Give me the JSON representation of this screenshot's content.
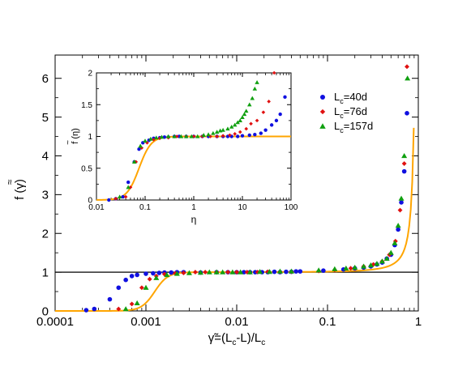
{
  "chart_data": [
    {
      "type": "scatter",
      "panel": "main",
      "title": "",
      "xlabel": "γ̃=(L_c-L)/L_c",
      "ylabel": "f̃ (γ)",
      "xscale": "log",
      "yscale": "linear",
      "xlim": [
        0.0001,
        1
      ],
      "ylim": [
        0,
        6.6
      ],
      "xticks": [
        {
          "value": 0.0001,
          "label": "0.0001"
        },
        {
          "value": 0.001,
          "label": "0.001"
        },
        {
          "value": 0.01,
          "label": "0.01"
        },
        {
          "value": 0.1,
          "label": "0.1"
        },
        {
          "value": 1,
          "label": "1"
        }
      ],
      "yticks": [
        {
          "value": 0,
          "label": "0"
        },
        {
          "value": 1,
          "label": "1"
        },
        {
          "value": 2,
          "label": "2"
        },
        {
          "value": 3,
          "label": "3"
        },
        {
          "value": 4,
          "label": "4"
        },
        {
          "value": 5,
          "label": "5"
        },
        {
          "value": 6,
          "label": "6"
        }
      ],
      "grid": false,
      "reference_line": {
        "y": 1,
        "color": "#000000"
      },
      "series": [
        {
          "name": "L_c=40d",
          "marker": "circle",
          "color": "#1010e0",
          "x": [
            0.00022,
            0.00027,
            0.0004,
            0.0005,
            0.0006,
            0.0007,
            0.0008,
            0.001,
            0.0012,
            0.0014,
            0.0016,
            0.0019,
            0.0022,
            0.0026,
            0.004,
            0.006,
            0.008,
            0.01,
            0.012,
            0.014,
            0.016,
            0.019,
            0.022,
            0.026,
            0.03,
            0.035,
            0.04,
            0.045,
            0.05,
            0.09,
            0.15,
            0.2,
            0.25,
            0.3,
            0.35,
            0.4,
            0.45,
            0.5,
            0.55,
            0.6,
            0.65,
            0.7,
            0.75
          ],
          "y": [
            0.02,
            0.05,
            0.3,
            0.6,
            0.8,
            0.9,
            0.93,
            0.96,
            0.97,
            0.98,
            0.99,
            0.99,
            1.0,
            1.0,
            0.99,
            1.0,
            1.0,
            1.0,
            1.0,
            1.0,
            1.0,
            1.0,
            1.0,
            1.01,
            1.0,
            1.01,
            1.01,
            1.02,
            1.02,
            1.04,
            1.07,
            1.1,
            1.12,
            1.15,
            1.2,
            1.25,
            1.35,
            1.45,
            1.7,
            2.1,
            2.8,
            3.6,
            5.1
          ]
        },
        {
          "name": "L_c=76d",
          "marker": "diamond",
          "color": "#e01010",
          "x": [
            0.0005,
            0.0007,
            0.0009,
            0.0011,
            0.0013,
            0.0016,
            0.0021,
            0.0026,
            0.0035,
            0.0045,
            0.006,
            0.008,
            0.01,
            0.013,
            0.017,
            0.022,
            0.03,
            0.04,
            0.08,
            0.12,
            0.18,
            0.25,
            0.32,
            0.4,
            0.48,
            0.56,
            0.63,
            0.7,
            0.75
          ],
          "y": [
            0.05,
            0.18,
            0.6,
            0.82,
            0.9,
            0.95,
            0.97,
            0.98,
            1.0,
            1.0,
            1.0,
            1.0,
            1.0,
            1.0,
            1.0,
            1.01,
            1.01,
            1.01,
            1.03,
            1.06,
            1.1,
            1.15,
            1.2,
            1.28,
            1.45,
            1.8,
            2.6,
            3.8,
            6.3
          ]
        },
        {
          "name": "L_c=157d",
          "marker": "triangle",
          "color": "#10a010",
          "x": [
            0.0006,
            0.0008,
            0.001,
            0.0013,
            0.0017,
            0.0022,
            0.003,
            0.004,
            0.005,
            0.006,
            0.007,
            0.009,
            0.011,
            0.014,
            0.018,
            0.023,
            0.03,
            0.04,
            0.08,
            0.12,
            0.16,
            0.2,
            0.25,
            0.3,
            0.35,
            0.4,
            0.45,
            0.5,
            0.55,
            0.6,
            0.65,
            0.7,
            0.76
          ],
          "y": [
            0.05,
            0.2,
            0.6,
            0.85,
            0.93,
            0.96,
            0.98,
            0.99,
            1.0,
            1.0,
            1.0,
            1.0,
            1.0,
            1.0,
            1.01,
            1.01,
            1.02,
            1.02,
            1.05,
            1.08,
            1.1,
            1.12,
            1.15,
            1.18,
            1.22,
            1.28,
            1.35,
            1.5,
            1.75,
            2.2,
            2.9,
            4.0,
            6.0
          ]
        }
      ],
      "fit_curve": {
        "color": "#ffa500"
      }
    },
    {
      "type": "scatter",
      "panel": "inset",
      "title": "",
      "xlabel": "η",
      "ylabel": "f̃ (η)",
      "xscale": "log",
      "yscale": "linear",
      "xlim": [
        0.01,
        100
      ],
      "ylim": [
        0,
        2
      ],
      "xticks": [
        {
          "value": 0.01,
          "label": "0.01"
        },
        {
          "value": 0.1,
          "label": "0.1"
        },
        {
          "value": 1,
          "label": "1"
        },
        {
          "value": 10,
          "label": "10"
        },
        {
          "value": 100,
          "label": "100"
        }
      ],
      "yticks": [
        {
          "value": 0,
          "label": "0"
        },
        {
          "value": 0.5,
          "label": "0.5"
        },
        {
          "value": 1,
          "label": "1"
        },
        {
          "value": 1.5,
          "label": "1.5"
        },
        {
          "value": 2,
          "label": "2"
        }
      ],
      "grid": false,
      "series": [
        {
          "name": "L_c=40d",
          "marker": "circle",
          "color": "#1010e0",
          "x": [
            0.018,
            0.025,
            0.035,
            0.045,
            0.06,
            0.075,
            0.09,
            0.12,
            0.15,
            0.2,
            0.25,
            0.3,
            0.4,
            0.5,
            0.7,
            1.0,
            1.5,
            2,
            3,
            4,
            5,
            6,
            8,
            10,
            14,
            18,
            24,
            30,
            40,
            50,
            60,
            75
          ],
          "y": [
            0.0,
            0.02,
            0.05,
            0.28,
            0.6,
            0.8,
            0.9,
            0.94,
            0.97,
            0.98,
            0.99,
            0.99,
            1.0,
            1.0,
            1.0,
            1.0,
            1.0,
            1.0,
            1.0,
            1.0,
            1.0,
            1.0,
            1.0,
            1.01,
            1.02,
            1.03,
            1.05,
            1.1,
            1.18,
            1.25,
            1.35,
            1.62
          ]
        },
        {
          "name": "L_c=76d",
          "marker": "diamond",
          "color": "#e01010",
          "x": [
            0.025,
            0.04,
            0.05,
            0.065,
            0.085,
            0.11,
            0.15,
            0.2,
            0.3,
            0.45,
            0.7,
            1.0,
            1.5,
            2.2,
            3,
            4,
            5.5,
            7,
            9,
            12,
            15,
            20,
            27,
            35,
            45
          ],
          "y": [
            0.02,
            0.05,
            0.2,
            0.6,
            0.82,
            0.9,
            0.95,
            0.97,
            0.98,
            1.0,
            1.0,
            1.0,
            1.0,
            1.0,
            1.0,
            1.01,
            1.02,
            1.04,
            1.07,
            1.12,
            1.2,
            1.25,
            1.38,
            1.55,
            2.0
          ]
        },
        {
          "name": "L_c=157d",
          "marker": "triangle",
          "color": "#10a010",
          "x": [
            0.03,
            0.045,
            0.06,
            0.08,
            0.1,
            0.13,
            0.17,
            0.22,
            0.3,
            0.4,
            0.55,
            0.7,
            0.9,
            1.2,
            1.6,
            2.0,
            2.5,
            3,
            3.5,
            4,
            5,
            6,
            7,
            8,
            9,
            10,
            11,
            12,
            14,
            16,
            18,
            20
          ],
          "y": [
            0.05,
            0.2,
            0.6,
            0.85,
            0.93,
            0.96,
            0.98,
            0.99,
            1.0,
            1.0,
            1.0,
            1.0,
            1.0,
            1.0,
            1.02,
            1.03,
            1.05,
            1.07,
            1.09,
            1.1,
            1.12,
            1.15,
            1.18,
            1.22,
            1.25,
            1.3,
            1.35,
            1.4,
            1.5,
            1.6,
            1.75,
            1.85
          ]
        }
      ],
      "fit_curve": {
        "color": "#ffa500"
      }
    }
  ],
  "legend": {
    "placement": "right of inset",
    "entries": [
      {
        "prefix": "L",
        "sub": "c",
        "suffix": "=40d"
      },
      {
        "prefix": "L",
        "sub": "c",
        "suffix": "=76d"
      },
      {
        "prefix": "L",
        "sub": "c",
        "suffix": "=157d"
      }
    ]
  },
  "labels": {
    "main_x_a": "γ̃=(L",
    "main_x_sub1": "c",
    "main_x_b": "-L)/L",
    "main_x_sub2": "c",
    "main_y_tilde": "≈",
    "main_y_text": "f (γ)",
    "inset_x": "η",
    "inset_y_tilde": "~",
    "inset_y_text": "f (η)"
  }
}
